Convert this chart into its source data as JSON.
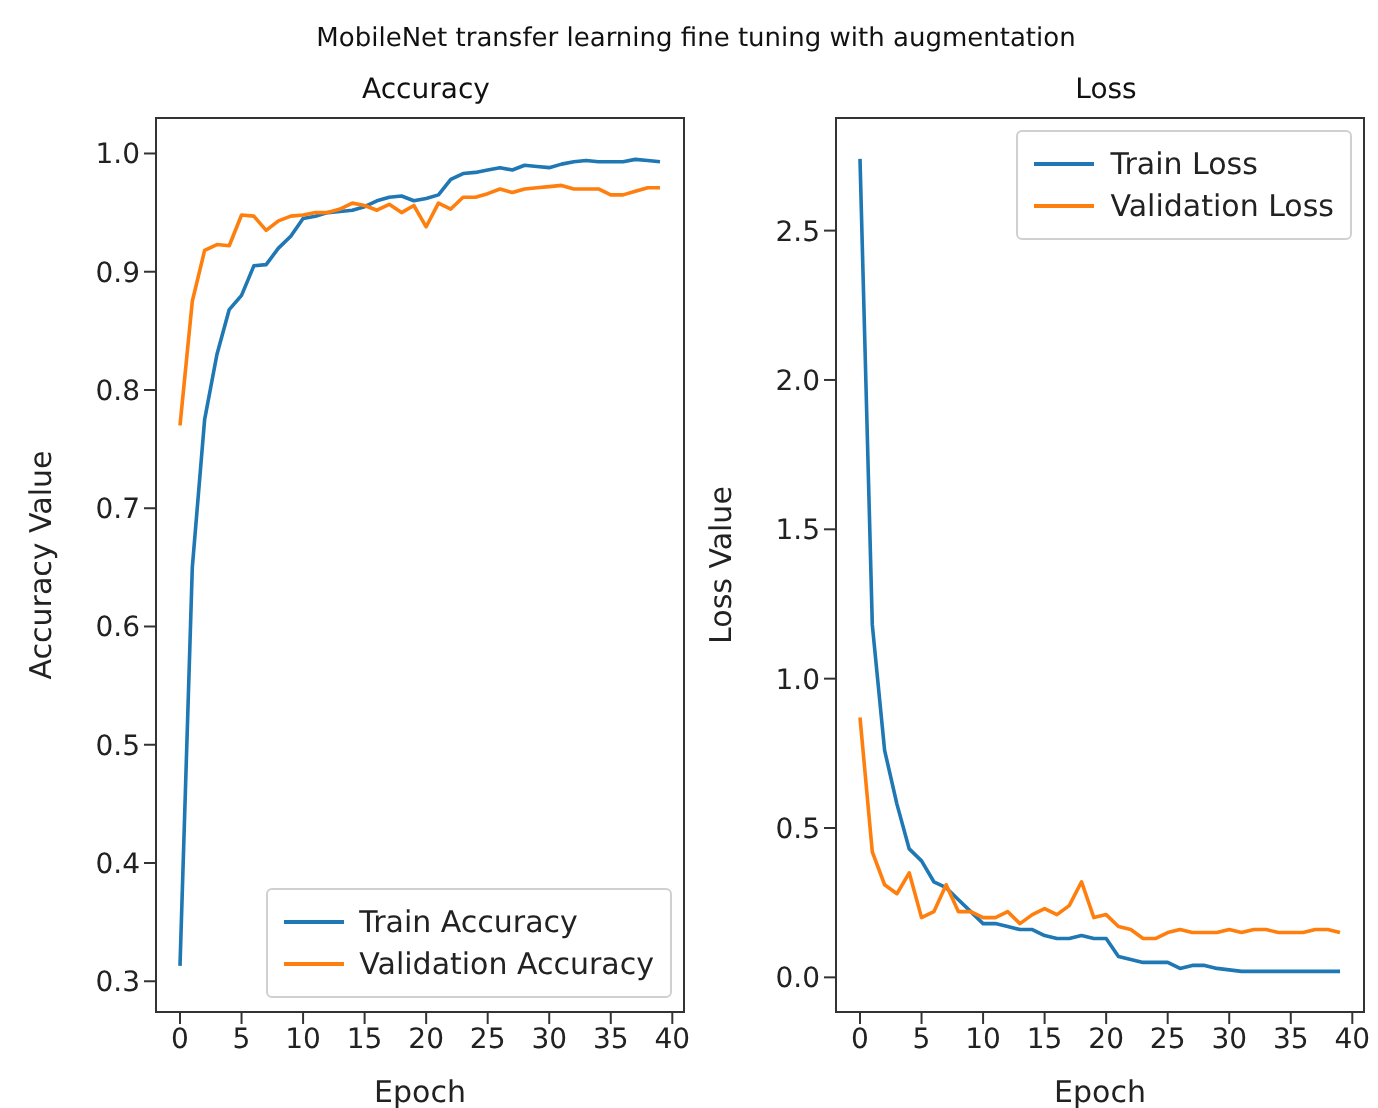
{
  "chart_data": [
    {
      "type": "line",
      "title": "Accuracy",
      "annotations": [
        "MobileNet transfer learning fine tuning with augmentation"
      ],
      "xlabel": "Epoch",
      "ylabel": "Accuracy Value",
      "x": [
        0,
        1,
        2,
        3,
        4,
        5,
        6,
        7,
        8,
        9,
        10,
        11,
        12,
        13,
        14,
        15,
        16,
        17,
        18,
        19,
        20,
        21,
        22,
        23,
        24,
        25,
        26,
        27,
        28,
        29,
        30,
        31,
        32,
        33,
        34,
        35,
        36,
        37,
        38,
        39
      ],
      "series": [
        {
          "name": "Train Accuracy",
          "color": "#1f77b4",
          "values": [
            0.313,
            0.65,
            0.775,
            0.83,
            0.868,
            0.88,
            0.905,
            0.906,
            0.92,
            0.93,
            0.945,
            0.947,
            0.95,
            0.951,
            0.952,
            0.955,
            0.96,
            0.963,
            0.964,
            0.96,
            0.962,
            0.965,
            0.978,
            0.983,
            0.984,
            0.986,
            0.988,
            0.986,
            0.99,
            0.989,
            0.988,
            0.991,
            0.993,
            0.994,
            0.993,
            0.993,
            0.993,
            0.995,
            0.994,
            0.993
          ]
        },
        {
          "name": "Validation Accuracy",
          "color": "#ff7f0e",
          "values": [
            0.77,
            0.875,
            0.918,
            0.923,
            0.922,
            0.948,
            0.947,
            0.935,
            0.943,
            0.947,
            0.948,
            0.95,
            0.95,
            0.953,
            0.958,
            0.956,
            0.952,
            0.957,
            0.95,
            0.956,
            0.938,
            0.958,
            0.953,
            0.963,
            0.963,
            0.966,
            0.97,
            0.967,
            0.97,
            0.971,
            0.972,
            0.973,
            0.97,
            0.97,
            0.97,
            0.965,
            0.965,
            0.968,
            0.971,
            0.971
          ]
        }
      ],
      "xlim": [
        -1.95,
        40.95
      ],
      "xticks": [
        0,
        5,
        10,
        15,
        20,
        25,
        30,
        35,
        40
      ],
      "ylim": [
        0.274,
        1.03
      ],
      "yticks": [
        0.3,
        0.4,
        0.5,
        0.6,
        0.7,
        0.8,
        0.9,
        {
          "value": 1,
          "label": "1.0"
        }
      ],
      "legend": "bottom right",
      "grid": false,
      "marker": "none",
      "line_style": "solid"
    },
    {
      "type": "line",
      "title": "Loss",
      "xlabel": "Epoch",
      "ylabel": "Loss Value",
      "x": [
        0,
        1,
        2,
        3,
        4,
        5,
        6,
        7,
        8,
        9,
        10,
        11,
        12,
        13,
        14,
        15,
        16,
        17,
        18,
        19,
        20,
        21,
        22,
        23,
        24,
        25,
        26,
        27,
        28,
        29,
        30,
        31,
        32,
        33,
        34,
        35,
        36,
        37,
        38,
        39
      ],
      "series": [
        {
          "name": "Train Loss",
          "color": "#1f77b4",
          "values": [
            2.74,
            1.18,
            0.76,
            0.58,
            0.43,
            0.39,
            0.32,
            0.3,
            0.26,
            0.22,
            0.18,
            0.18,
            0.17,
            0.16,
            0.16,
            0.14,
            0.13,
            0.13,
            0.14,
            0.13,
            0.13,
            0.07,
            0.06,
            0.05,
            0.05,
            0.05,
            0.03,
            0.04,
            0.04,
            0.03,
            0.025,
            0.02,
            0.02,
            0.02,
            0.02,
            0.02,
            0.02,
            0.02,
            0.02,
            0.02
          ]
        },
        {
          "name": "Validation Loss",
          "color": "#ff7f0e",
          "values": [
            0.87,
            0.42,
            0.31,
            0.28,
            0.35,
            0.2,
            0.22,
            0.31,
            0.22,
            0.22,
            0.2,
            0.2,
            0.22,
            0.18,
            0.21,
            0.23,
            0.21,
            0.24,
            0.32,
            0.2,
            0.21,
            0.17,
            0.16,
            0.13,
            0.13,
            0.15,
            0.16,
            0.15,
            0.15,
            0.15,
            0.16,
            0.15,
            0.16,
            0.16,
            0.15,
            0.15,
            0.15,
            0.16,
            0.16,
            0.15
          ]
        }
      ],
      "xlim": [
        -1.95,
        40.95
      ],
      "xticks": [
        0,
        5,
        10,
        15,
        20,
        25,
        30,
        35,
        40
      ],
      "ylim": [
        -0.116,
        2.877
      ],
      "yticks": [
        {
          "value": 0,
          "label": "0.0"
        },
        0.5,
        {
          "value": 1,
          "label": "1.0"
        },
        1.5,
        {
          "value": 2,
          "label": "2.0"
        },
        2.5
      ],
      "legend": "top right",
      "grid": false,
      "marker": "none",
      "line_style": "solid"
    }
  ]
}
